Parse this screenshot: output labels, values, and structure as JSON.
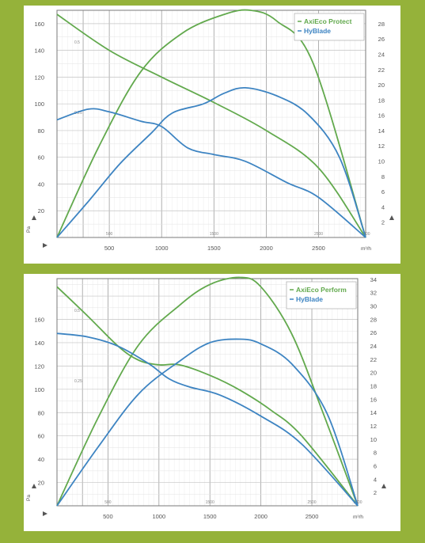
{
  "colors": {
    "green": "#62a94d",
    "blue": "#3d84c2",
    "grid": "#bdbdbd",
    "frame": "#7a7a7a"
  },
  "chart_data": [
    {
      "type": "line",
      "legend_position": "top-right",
      "grid": true,
      "x_unit": "m³/h",
      "x_ticks": [
        "500",
        "1000",
        "1500",
        "2000",
        "2500"
      ],
      "x_secondary_ticks": [
        "",
        "500",
        "1500",
        "",
        "2500",
        "3000"
      ],
      "y_left_symbol": "Pa",
      "y_left_ticks": [
        "20",
        "40",
        "60",
        "80",
        "100",
        "120",
        "140",
        "160"
      ],
      "y_right_ticks": [
        "2",
        "4",
        "6",
        "8",
        "10",
        "12",
        "14",
        "16",
        "18",
        "20",
        "22",
        "24",
        "26",
        "28"
      ],
      "y_left_minor_ticks": [
        "0.25",
        "0.5"
      ],
      "xlim": [
        0,
        2950
      ],
      "ylim_left": [
        0,
        170
      ],
      "ylim_right": [
        0,
        29.75
      ],
      "series": [
        {
          "name": "AxiEco Protect",
          "color": "green",
          "kind": "pressure",
          "x": [
            0,
            500,
            1000,
            1500,
            2000,
            2500,
            2950
          ],
          "y": [
            167,
            140,
            120,
            101,
            80,
            52,
            0
          ]
        },
        {
          "name": "",
          "color": "green",
          "kind": "efficiency",
          "x": [
            0,
            400,
            800,
            1200,
            1600,
            1850,
            2100,
            2450,
            2950
          ],
          "y": [
            0,
            68,
            124,
            153,
            167,
            170,
            162,
            130,
            0
          ]
        },
        {
          "name": "HyBlade",
          "color": "blue",
          "kind": "pressure",
          "x": [
            0,
            300,
            500,
            800,
            1000,
            1250,
            1500,
            1800,
            2200,
            2500,
            2950
          ],
          "y": [
            88,
            96,
            94,
            87,
            83,
            67,
            62,
            57,
            41,
            30,
            0
          ]
        },
        {
          "name": "",
          "color": "blue",
          "kind": "efficiency",
          "x": [
            0,
            300,
            600,
            900,
            1100,
            1400,
            1600,
            1800,
            2100,
            2400,
            2700,
            2950
          ],
          "y": [
            0,
            27,
            55,
            78,
            93,
            100,
            108,
            112,
            106,
            92,
            60,
            0
          ]
        }
      ]
    },
    {
      "type": "line",
      "legend_position": "top-right",
      "grid": true,
      "x_unit": "m³/h",
      "x_ticks": [
        "500",
        "1000",
        "1500",
        "2000",
        "2500"
      ],
      "x_secondary_ticks": [
        "",
        "500",
        "1500",
        "",
        "2500",
        "3000"
      ],
      "y_left_symbol": "Pa",
      "y_left_ticks": [
        "20",
        "40",
        "60",
        "80",
        "100",
        "120",
        "140",
        "160"
      ],
      "y_right_ticks": [
        "2",
        "4",
        "6",
        "8",
        "10",
        "12",
        "14",
        "16",
        "18",
        "20",
        "22",
        "24",
        "26",
        "28",
        "30",
        "32",
        "34"
      ],
      "y_left_minor_ticks": [
        "0.25",
        "0.5"
      ],
      "xlim": [
        0,
        2950
      ],
      "ylim_left": [
        0,
        195
      ],
      "ylim_right": [
        0,
        34.1
      ],
      "series": [
        {
          "name": "AxiEco Perform",
          "color": "green",
          "kind": "pressure",
          "x": [
            0,
            300,
            600,
            800,
            1000,
            1200,
            1500,
            1800,
            2100,
            2400,
            2950
          ],
          "y": [
            188,
            163,
            137,
            125,
            121,
            121,
            112,
            99,
            82,
            60,
            0
          ]
        },
        {
          "name": "",
          "color": "green",
          "kind": "efficiency",
          "x": [
            0,
            400,
            800,
            1200,
            1500,
            1800,
            2000,
            2300,
            2600,
            2950
          ],
          "y": [
            0,
            75,
            138,
            172,
            190,
            196,
            188,
            148,
            82,
            0
          ]
        },
        {
          "name": "HyBlade",
          "color": "blue",
          "kind": "pressure",
          "x": [
            0,
            300,
            600,
            900,
            1100,
            1300,
            1600,
            2000,
            2400,
            2950
          ],
          "y": [
            148,
            145,
            137,
            122,
            109,
            102,
            95,
            77,
            53,
            0
          ]
        },
        {
          "name": "",
          "color": "blue",
          "kind": "efficiency",
          "x": [
            0,
            400,
            800,
            1200,
            1500,
            1800,
            2000,
            2300,
            2650,
            2950
          ],
          "y": [
            0,
            50,
            96,
            124,
            140,
            143,
            139,
            122,
            79,
            0
          ]
        }
      ]
    }
  ]
}
